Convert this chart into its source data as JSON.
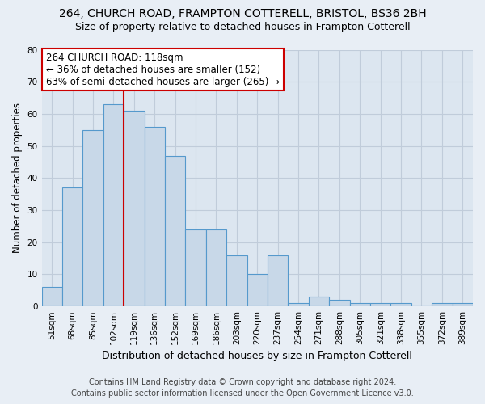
{
  "title_line1": "264, CHURCH ROAD, FRAMPTON COTTERELL, BRISTOL, BS36 2BH",
  "title_line2": "Size of property relative to detached houses in Frampton Cotterell",
  "xlabel": "Distribution of detached houses by size in Frampton Cotterell",
  "ylabel": "Number of detached properties",
  "bar_labels": [
    "51sqm",
    "68sqm",
    "85sqm",
    "102sqm",
    "119sqm",
    "136sqm",
    "152sqm",
    "169sqm",
    "186sqm",
    "203sqm",
    "220sqm",
    "237sqm",
    "254sqm",
    "271sqm",
    "288sqm",
    "305sqm",
    "321sqm",
    "338sqm",
    "355sqm",
    "372sqm",
    "389sqm"
  ],
  "bar_heights": [
    6,
    37,
    55,
    63,
    61,
    56,
    47,
    24,
    24,
    16,
    10,
    16,
    1,
    3,
    2,
    1,
    1,
    1,
    0,
    1,
    1
  ],
  "bar_color": "#c8d8e8",
  "bar_edge_color": "#5599cc",
  "vline_x": 4,
  "ylim": [
    0,
    80
  ],
  "yticks": [
    0,
    10,
    20,
    30,
    40,
    50,
    60,
    70,
    80
  ],
  "annotation_title": "264 CHURCH ROAD: 118sqm",
  "annotation_line1": "← 36% of detached houses are smaller (152)",
  "annotation_line2": "63% of semi-detached houses are larger (265) →",
  "annotation_box_color": "#ffffff",
  "annotation_box_edge": "#cc0000",
  "vline_color": "#cc0000",
  "footer_line1": "Contains HM Land Registry data © Crown copyright and database right 2024.",
  "footer_line2": "Contains public sector information licensed under the Open Government Licence v3.0.",
  "bg_color": "#e8eef5",
  "plot_bg_color": "#dce6f0",
  "grid_color": "#c0ccda",
  "title_fontsize": 10,
  "subtitle_fontsize": 9,
  "xlabel_fontsize": 9,
  "ylabel_fontsize": 8.5,
  "tick_fontsize": 7.5,
  "footer_fontsize": 7,
  "annotation_fontsize": 8.5
}
